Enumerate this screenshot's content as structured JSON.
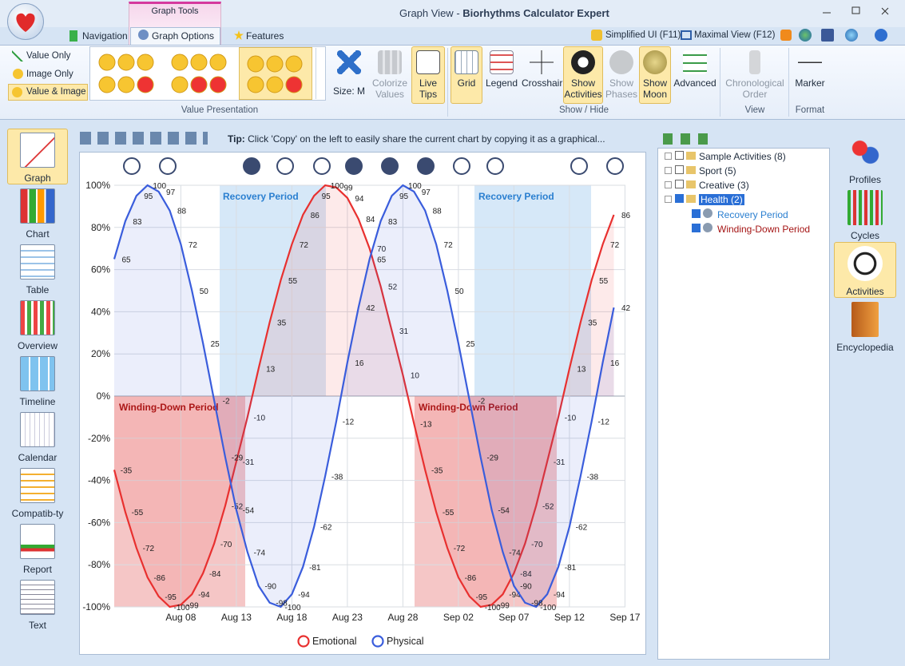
{
  "window": {
    "title": "Graph View",
    "separator": "-",
    "app": "Biorhythms Calculator Expert",
    "context_tab": "Graph Tools"
  },
  "ribbon": {
    "tabs": [
      "Navigation",
      "Graph Options",
      "Features"
    ],
    "quick": [
      "Simplified UI (F11)",
      "Maximal View (F12)"
    ],
    "value_options": [
      "Value Only",
      "Image Only",
      "Value & Image"
    ],
    "buttons": [
      "Size: M",
      "Colorize Values",
      "Live Tips",
      "Grid",
      "Legend",
      "Crosshair",
      "Show Activities",
      "Show Phases",
      "Show Moon",
      "Advanced",
      "Chronological Order",
      "Marker"
    ],
    "groups": [
      "Value Presentation",
      "Show / Hide",
      "View",
      "Format"
    ]
  },
  "left_nav": [
    "Graph",
    "Chart",
    "Table",
    "Overview",
    "Timeline",
    "Calendar",
    "Compatib-ty",
    "Report",
    "Text"
  ],
  "tip": {
    "label": "Tip:",
    "text": "Click 'Copy' on the left to easily share the current chart by copying it as a graphical..."
  },
  "tree": {
    "items": [
      "Sample Activities (8)",
      "Sport (5)",
      "Creative (3)",
      "Health (2)"
    ],
    "children": [
      "Recovery Period",
      "Winding-Down Period"
    ]
  },
  "right_nav": [
    "Profiles",
    "Cycles",
    "Activities",
    "Encyclopedia"
  ],
  "chart_data": {
    "type": "line",
    "categories": [
      null,
      null,
      null,
      null,
      null,
      null,
      "Aug 08",
      null,
      null,
      null,
      null,
      "Aug 13",
      null,
      null,
      null,
      null,
      "Aug 18",
      null,
      null,
      null,
      null,
      "Aug 23",
      null,
      null,
      null,
      null,
      "Aug 28",
      null,
      null,
      null,
      null,
      "Sep 02",
      null,
      null,
      null,
      null,
      "Sep 07",
      null,
      null,
      null,
      null,
      "Sep 12",
      null,
      null,
      null,
      null,
      "Sep 17"
    ],
    "series": [
      {
        "name": "Emotional",
        "color": "#e8302f",
        "values": [
          -35,
          -55,
          -72,
          -86,
          -95,
          -100,
          -99,
          -94,
          -84,
          -70,
          -52,
          -31,
          -10,
          13,
          35,
          55,
          72,
          86,
          95,
          100,
          99,
          94,
          84,
          70,
          52,
          31,
          10,
          -13,
          -35,
          -55,
          -72,
          -86,
          -95,
          -100,
          -99,
          -94,
          -84,
          -70,
          -52,
          -31,
          -10,
          13,
          35,
          55,
          72,
          86,
          null
        ]
      },
      {
        "name": "Physical",
        "color": "#3a5ddc",
        "values": [
          65,
          83,
          95,
          100,
          97,
          88,
          72,
          50,
          25,
          -2,
          -29,
          -54,
          -74,
          -90,
          -98,
          -100,
          -94,
          -81,
          -62,
          -38,
          -12,
          16,
          42,
          65,
          83,
          95,
          100,
          97,
          88,
          72,
          50,
          25,
          -2,
          -29,
          -54,
          -74,
          -90,
          -98,
          -100,
          -94,
          -81,
          -62,
          -38,
          -12,
          16,
          42,
          null
        ]
      }
    ],
    "ylim": [
      -100,
      100
    ],
    "yticks": [
      {
        "value": -100,
        "label": "-100%"
      },
      {
        "value": -80,
        "label": "-80%"
      },
      {
        "value": -60,
        "label": "-60%"
      },
      {
        "value": -40,
        "label": "-40%"
      },
      {
        "value": -20,
        "label": "-20%"
      },
      {
        "value": 0,
        "label": "0%"
      },
      {
        "value": 20,
        "label": "20%"
      },
      {
        "value": 40,
        "label": "40%"
      },
      {
        "value": 60,
        "label": "60%"
      },
      {
        "value": 80,
        "label": "80%"
      },
      {
        "value": 100,
        "label": "100%"
      }
    ],
    "grid": true,
    "annotations": [
      {
        "text": "Recovery Period",
        "color": "#2a7fd0"
      },
      {
        "text": "Recovery Period",
        "color": "#2a7fd0"
      },
      {
        "text": "Winding-Down Period",
        "color": "#a51515"
      },
      {
        "text": "Winding-Down Period",
        "color": "#a51515"
      }
    ]
  }
}
